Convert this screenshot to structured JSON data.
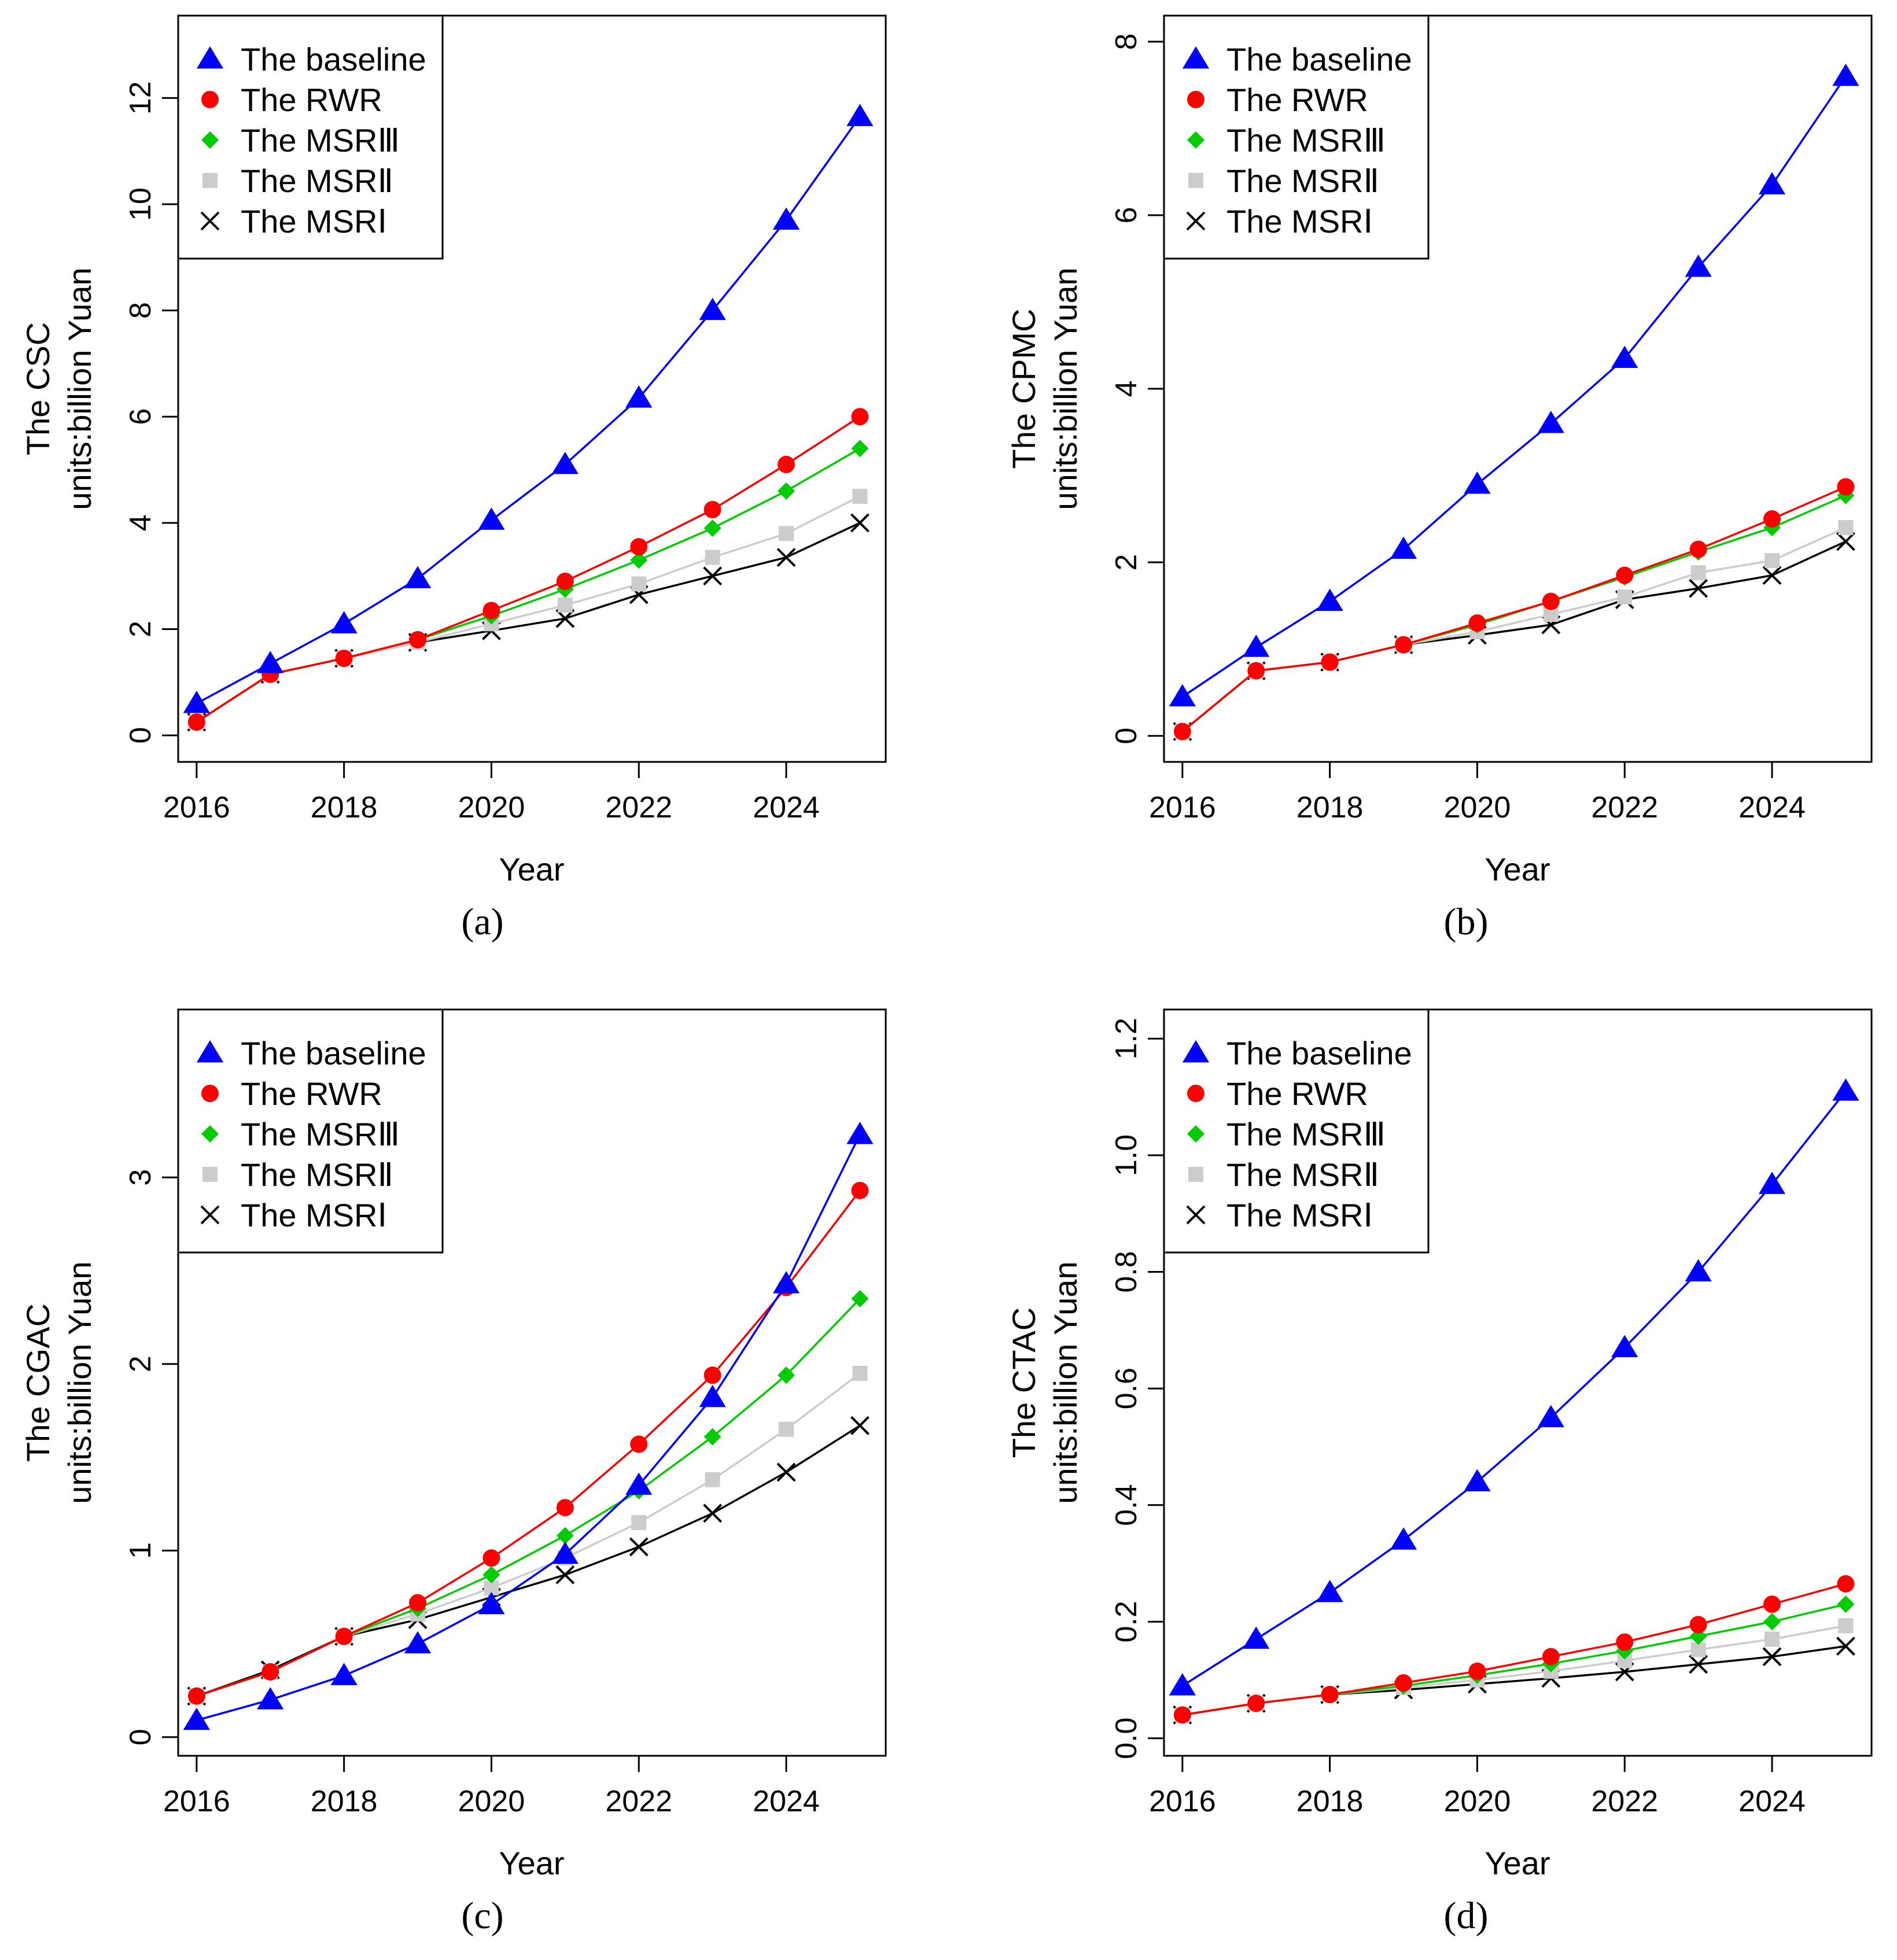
{
  "chart_data": [
    {
      "type": "line",
      "panel": "a",
      "caption_letter": "a",
      "title": "",
      "xlabel": "Year",
      "ylabel_line1": "The CSC",
      "ylabel_line2": "units:billion Yuan",
      "x": [
        2016,
        2017,
        2018,
        2019,
        2020,
        2021,
        2022,
        2023,
        2024,
        2025
      ],
      "xticks": [
        2016,
        2018,
        2020,
        2022,
        2024
      ],
      "xticklabels": [
        "2016",
        "2018",
        "2020",
        "2022",
        "2024"
      ],
      "xlim": [
        2015.75,
        2025.35
      ],
      "yticks": [
        0,
        2,
        4,
        6,
        8,
        10,
        12
      ],
      "yticklabels": [
        "0",
        "2",
        "4",
        "6",
        "8",
        "10",
        "12"
      ],
      "ylim": [
        -0.5,
        13.55
      ],
      "grid": false,
      "legend_position": "top-left",
      "series": [
        {
          "key": "baseline",
          "name": "The baseline",
          "color": "#0000ff",
          "marker": "triangle",
          "values": [
            0.6,
            1.35,
            2.1,
            2.95,
            4.05,
            5.1,
            6.35,
            8.0,
            9.7,
            11.65
          ]
        },
        {
          "key": "rwr",
          "name": "The RWR",
          "color": "#ff0000",
          "marker": "circle",
          "values": [
            0.25,
            1.15,
            1.45,
            1.8,
            2.35,
            2.9,
            3.55,
            4.25,
            5.1,
            6.0
          ]
        },
        {
          "key": "msr3",
          "name": "The MSRⅢ",
          "color": "#00cc00",
          "marker": "diamond",
          "values": [
            0.25,
            1.15,
            1.45,
            1.8,
            2.25,
            2.75,
            3.3,
            3.9,
            4.6,
            5.4
          ]
        },
        {
          "key": "msr2",
          "name": "The MSRⅡ",
          "color": "#cccccc",
          "marker": "square",
          "values": [
            0.25,
            1.15,
            1.45,
            1.75,
            2.1,
            2.45,
            2.85,
            3.35,
            3.8,
            4.5
          ]
        },
        {
          "key": "msr1",
          "name": "The MSRⅠ",
          "color": "#000000",
          "marker": "x",
          "values": [
            0.25,
            1.15,
            1.45,
            1.75,
            1.97,
            2.2,
            2.65,
            3.0,
            3.35,
            4.0
          ]
        }
      ]
    },
    {
      "type": "line",
      "panel": "b",
      "caption_letter": "b",
      "title": "",
      "xlabel": "Year",
      "ylabel_line1": "The CPMC",
      "ylabel_line2": "units:billion Yuan",
      "x": [
        2016,
        2017,
        2018,
        2019,
        2020,
        2021,
        2022,
        2023,
        2024,
        2025
      ],
      "xticks": [
        2016,
        2018,
        2020,
        2022,
        2024
      ],
      "xticklabels": [
        "2016",
        "2018",
        "2020",
        "2022",
        "2024"
      ],
      "xlim": [
        2015.75,
        2025.35
      ],
      "yticks": [
        0,
        2,
        4,
        6,
        8
      ],
      "yticklabels": [
        "0",
        "2",
        "4",
        "6",
        "8"
      ],
      "ylim": [
        -0.3,
        8.3
      ],
      "grid": false,
      "legend_position": "top-left",
      "series": [
        {
          "key": "baseline",
          "name": "The baseline",
          "color": "#0000ff",
          "marker": "triangle",
          "values": [
            0.45,
            1.02,
            1.55,
            2.15,
            2.9,
            3.6,
            4.35,
            5.4,
            6.35,
            7.6
          ]
        },
        {
          "key": "rwr",
          "name": "The RWR",
          "color": "#ff0000",
          "marker": "circle",
          "values": [
            0.05,
            0.75,
            0.85,
            1.05,
            1.3,
            1.55,
            1.85,
            2.15,
            2.5,
            2.87
          ]
        },
        {
          "key": "msr3",
          "name": "The MSRⅢ",
          "color": "#00cc00",
          "marker": "diamond",
          "values": [
            0.05,
            0.75,
            0.85,
            1.05,
            1.28,
            1.55,
            1.83,
            2.12,
            2.4,
            2.77
          ]
        },
        {
          "key": "msr2",
          "name": "The MSRⅡ",
          "color": "#cccccc",
          "marker": "square",
          "values": [
            0.05,
            0.75,
            0.85,
            1.05,
            1.2,
            1.4,
            1.6,
            1.88,
            2.02,
            2.4
          ]
        },
        {
          "key": "msr1",
          "name": "The MSRⅠ",
          "color": "#000000",
          "marker": "x",
          "values": [
            0.05,
            0.75,
            0.85,
            1.05,
            1.16,
            1.28,
            1.57,
            1.7,
            1.85,
            2.24
          ]
        }
      ]
    },
    {
      "type": "line",
      "panel": "c",
      "caption_letter": "c",
      "title": "",
      "xlabel": "Year",
      "ylabel_line1": "The CGAC",
      "ylabel_line2": "units:billion Yuan",
      "x": [
        2016,
        2017,
        2018,
        2019,
        2020,
        2021,
        2022,
        2023,
        2024,
        2025
      ],
      "xticks": [
        2016,
        2018,
        2020,
        2022,
        2024
      ],
      "xticklabels": [
        "2016",
        "2018",
        "2020",
        "2022",
        "2024"
      ],
      "xlim": [
        2015.75,
        2025.35
      ],
      "yticks": [
        0,
        1,
        2,
        3
      ],
      "yticklabels": [
        "0",
        "1",
        "2",
        "3"
      ],
      "ylim": [
        -0.1,
        3.9
      ],
      "grid": false,
      "legend_position": "top-left",
      "series": [
        {
          "key": "baseline",
          "name": "The baseline",
          "color": "#0000ff",
          "marker": "triangle",
          "values": [
            0.09,
            0.2,
            0.33,
            0.5,
            0.71,
            0.98,
            1.35,
            1.82,
            2.43,
            3.23
          ]
        },
        {
          "key": "rwr",
          "name": "The RWR",
          "color": "#ff0000",
          "marker": "circle",
          "values": [
            0.22,
            0.35,
            0.54,
            0.72,
            0.96,
            1.23,
            1.57,
            1.94,
            2.41,
            2.93
          ]
        },
        {
          "key": "msr3",
          "name": "The MSRⅢ",
          "color": "#00cc00",
          "marker": "diamond",
          "values": [
            0.22,
            0.35,
            0.54,
            0.69,
            0.87,
            1.08,
            1.32,
            1.61,
            1.94,
            2.35
          ]
        },
        {
          "key": "msr2",
          "name": "The MSRⅡ",
          "color": "#cccccc",
          "marker": "square",
          "values": [
            0.22,
            0.35,
            0.54,
            0.66,
            0.8,
            0.96,
            1.15,
            1.38,
            1.65,
            1.95
          ]
        },
        {
          "key": "msr1",
          "name": "The MSRⅠ",
          "color": "#000000",
          "marker": "x",
          "values": [
            0.22,
            0.36,
            0.54,
            0.63,
            0.75,
            0.87,
            1.02,
            1.2,
            1.42,
            1.67
          ]
        }
      ]
    },
    {
      "type": "line",
      "panel": "d",
      "caption_letter": "d",
      "title": "",
      "xlabel": "Year",
      "ylabel_line1": "The CTAC",
      "ylabel_line2": "units:billion Yuan",
      "x": [
        2016,
        2017,
        2018,
        2019,
        2020,
        2021,
        2022,
        2023,
        2024,
        2025
      ],
      "xticks": [
        2016,
        2018,
        2020,
        2022,
        2024
      ],
      "xticklabels": [
        "2016",
        "2018",
        "2020",
        "2022",
        "2024"
      ],
      "xlim": [
        2015.75,
        2025.35
      ],
      "yticks": [
        0.0,
        0.2,
        0.4,
        0.6,
        0.8,
        1.0,
        1.2
      ],
      "yticklabels": [
        "0.0",
        "0.2",
        "0.4",
        "0.6",
        "0.8",
        "1.0",
        "1.2"
      ],
      "ylim": [
        -0.03,
        1.25
      ],
      "grid": false,
      "legend_position": "top-left",
      "series": [
        {
          "key": "baseline",
          "name": "The baseline",
          "color": "#0000ff",
          "marker": "triangle",
          "values": [
            0.09,
            0.17,
            0.25,
            0.34,
            0.44,
            0.55,
            0.67,
            0.8,
            0.95,
            1.11
          ]
        },
        {
          "key": "rwr",
          "name": "The RWR",
          "color": "#ff0000",
          "marker": "circle",
          "values": [
            0.04,
            0.06,
            0.075,
            0.095,
            0.115,
            0.14,
            0.165,
            0.195,
            0.23,
            0.265
          ]
        },
        {
          "key": "msr3",
          "name": "The MSRⅢ",
          "color": "#00cc00",
          "marker": "diamond",
          "values": [
            0.04,
            0.06,
            0.075,
            0.09,
            0.108,
            0.128,
            0.15,
            0.175,
            0.2,
            0.23
          ]
        },
        {
          "key": "msr2",
          "name": "The MSRⅡ",
          "color": "#cccccc",
          "marker": "square",
          "values": [
            0.04,
            0.06,
            0.075,
            0.087,
            0.1,
            0.115,
            0.133,
            0.152,
            0.17,
            0.193
          ]
        },
        {
          "key": "msr1",
          "name": "The MSRⅠ",
          "color": "#000000",
          "marker": "x",
          "values": [
            0.04,
            0.06,
            0.075,
            0.083,
            0.093,
            0.103,
            0.114,
            0.127,
            0.14,
            0.158
          ]
        }
      ]
    }
  ]
}
